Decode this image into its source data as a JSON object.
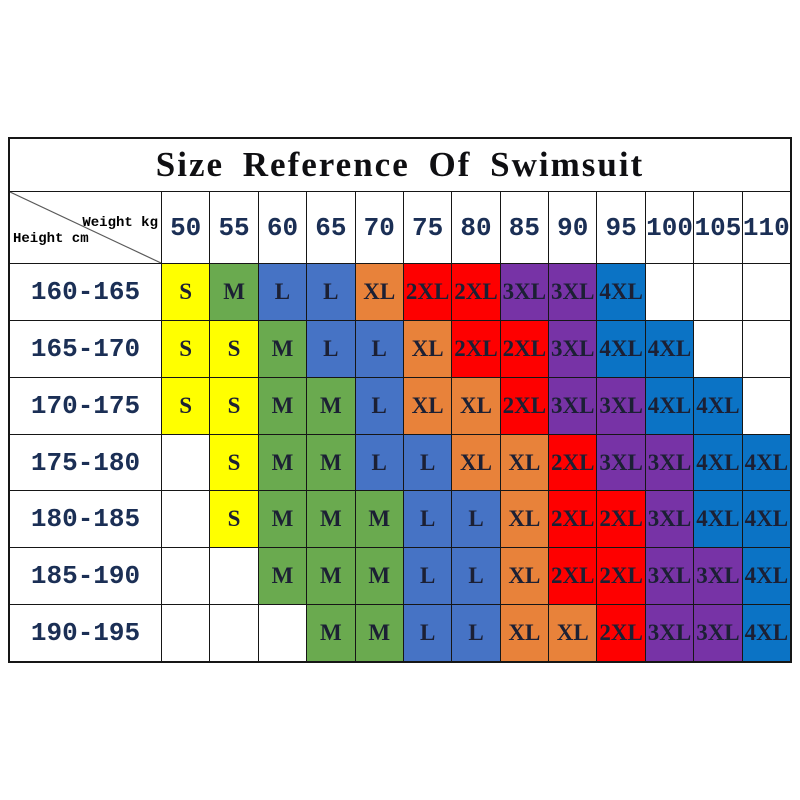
{
  "chart_data": {
    "type": "table",
    "title": "Size Reference Of Swimsuit",
    "x_axis_label": "Weight kg",
    "y_axis_label": "Height cm",
    "weights": [
      "50",
      "55",
      "60",
      "65",
      "70",
      "75",
      "80",
      "85",
      "90",
      "95",
      "100",
      "105",
      "110"
    ],
    "rows": [
      {
        "height": "160-165",
        "sizes": [
          "S",
          "M",
          "L",
          "L",
          "XL",
          "2XL",
          "2XL",
          "3XL",
          "3XL",
          "4XL",
          "",
          "",
          ""
        ]
      },
      {
        "height": "165-170",
        "sizes": [
          "S",
          "S",
          "M",
          "L",
          "L",
          "XL",
          "2XL",
          "2XL",
          "3XL",
          "4XL",
          "4XL",
          "",
          ""
        ]
      },
      {
        "height": "170-175",
        "sizes": [
          "S",
          "S",
          "M",
          "M",
          "L",
          "XL",
          "XL",
          "2XL",
          "3XL",
          "3XL",
          "4XL",
          "4XL",
          ""
        ]
      },
      {
        "height": "175-180",
        "sizes": [
          "",
          "S",
          "M",
          "M",
          "L",
          "L",
          "XL",
          "XL",
          "2XL",
          "3XL",
          "3XL",
          "4XL",
          "4XL"
        ]
      },
      {
        "height": "180-185",
        "sizes": [
          "",
          "S",
          "M",
          "M",
          "M",
          "L",
          "L",
          "XL",
          "2XL",
          "2XL",
          "3XL",
          "4XL",
          "4XL"
        ]
      },
      {
        "height": "185-190",
        "sizes": [
          "",
          "",
          "M",
          "M",
          "M",
          "L",
          "L",
          "XL",
          "2XL",
          "2XL",
          "3XL",
          "3XL",
          "4XL"
        ]
      },
      {
        "height": "190-195",
        "sizes": [
          "",
          "",
          "",
          "M",
          "M",
          "L",
          "L",
          "XL",
          "XL",
          "2XL",
          "3XL",
          "3XL",
          "4XL"
        ]
      }
    ],
    "size_colors": {
      "S": "#ffff00",
      "M": "#6aaa4f",
      "L": "#4673c5",
      "XL": "#e8823a",
      "2XL": "#fe0000",
      "3XL": "#7733a6",
      "4XL": "#0b73c5",
      "": "#ffffff"
    },
    "grid_color": "#161616",
    "header_text_color": "#1b2f55",
    "cell_text_color": "#1c2034",
    "layout": {
      "grid": "on",
      "legend": "none",
      "title_position": "top-center"
    }
  }
}
